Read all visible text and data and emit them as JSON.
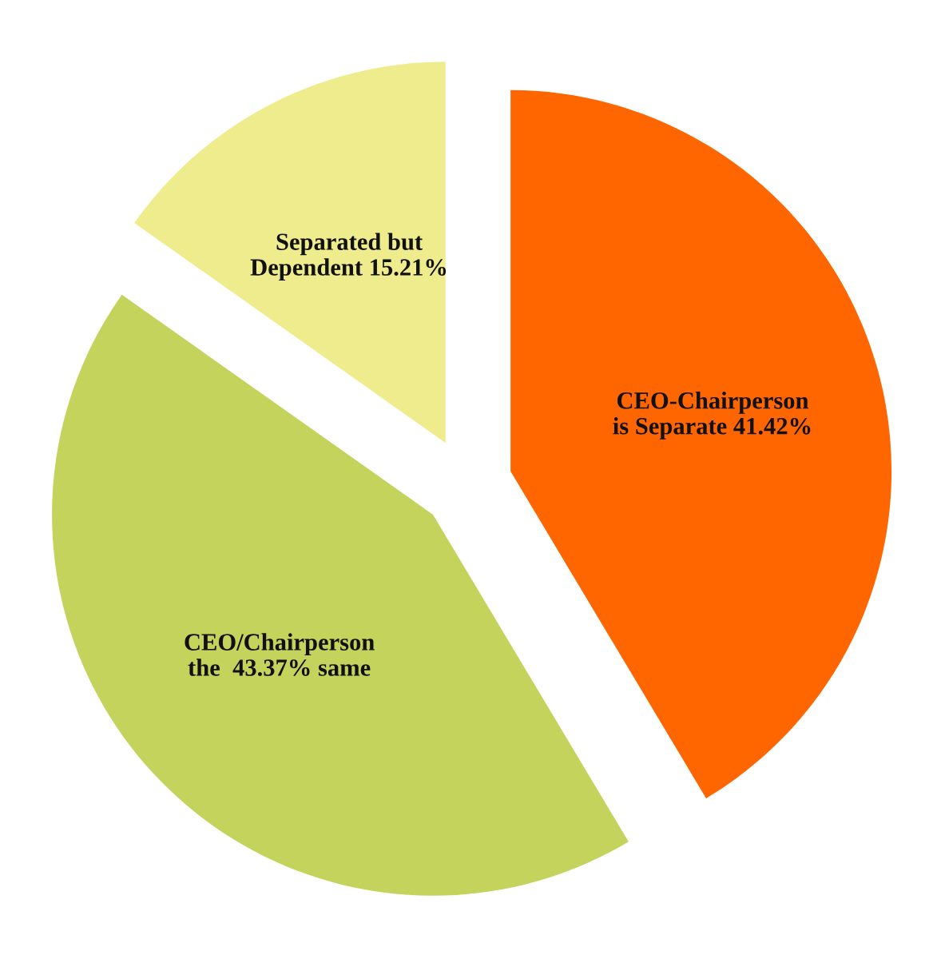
{
  "chart_data": {
    "type": "pie",
    "categories": [
      "CEO-Chairperson\nis Separate 41.42%",
      "CEO/Chairperson\nthe  43.37% same",
      "Separated but\nDependent 15.21%"
    ],
    "values": [
      41.42,
      43.37,
      15.21
    ],
    "colors": [
      "#ff6600",
      "#c3d35c",
      "#eeec8c"
    ]
  }
}
